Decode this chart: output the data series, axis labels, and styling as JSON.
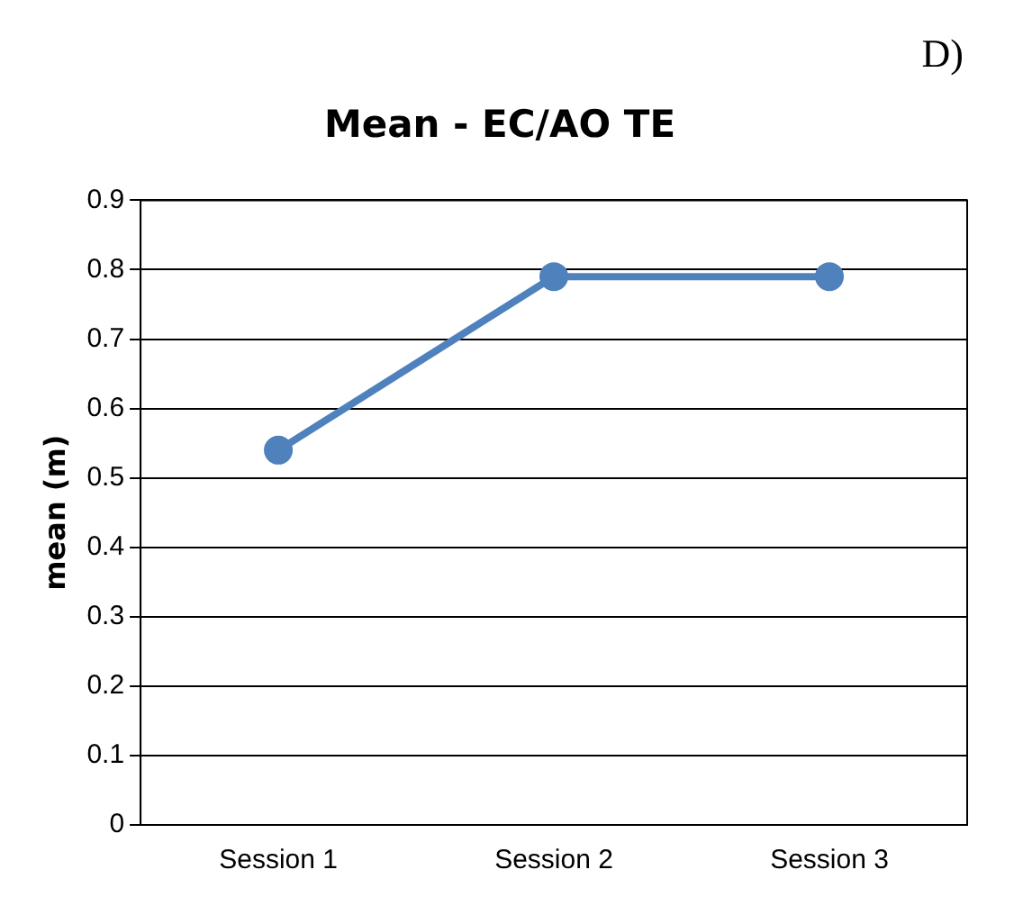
{
  "chart_data": {
    "type": "line",
    "title": "Mean - EC/AO TE",
    "ylabel": "mean (m)",
    "annotations": [
      "D)"
    ],
    "categories": [
      "Session 1",
      "Session 2",
      "Session 3"
    ],
    "series": [
      {
        "color": "#4f81bd",
        "values": [
          0.54,
          0.79,
          0.79
        ]
      }
    ],
    "ylim": [
      0,
      0.9
    ],
    "yticks": [
      0,
      0.1,
      0.2,
      0.3,
      0.4,
      0.5,
      0.6,
      0.7,
      0.8,
      0.9
    ],
    "grid": "y",
    "legend": false,
    "marker": "circle",
    "line_style": "solid"
  }
}
